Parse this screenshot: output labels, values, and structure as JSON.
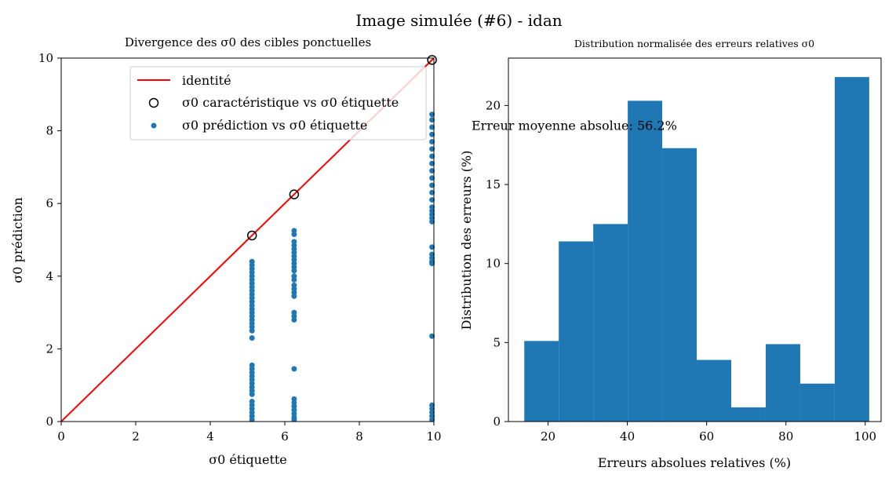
{
  "figure_title": "Image simulée (#6) - idan",
  "chart_data": [
    {
      "type": "scatter",
      "title": "Divergence des σ0 des cibles ponctuelles",
      "xlabel": "σ0 étiquette",
      "ylabel": "σ0 prédiction",
      "xlim": [
        0,
        10
      ],
      "ylim": [
        0,
        10
      ],
      "xticks": [
        0,
        2,
        4,
        6,
        8,
        10
      ],
      "yticks": [
        0,
        2,
        4,
        6,
        8,
        10
      ],
      "grid": false,
      "legend_position": "top-right",
      "legend": [
        {
          "label": "identité",
          "kind": "line"
        },
        {
          "label": "σ0 caractéristique vs σ0 étiquette",
          "kind": "hollow-circle"
        },
        {
          "label": "σ0 prédiction vs σ0 étiquette",
          "kind": "dot"
        }
      ],
      "colors": {
        "identity": "#ff0000",
        "prediction": "#1f77b4",
        "characteristic": "#000000"
      },
      "identity_line": {
        "x": [
          0,
          10
        ],
        "y": [
          0,
          10
        ]
      },
      "characteristic_points": [
        {
          "x": 5.12,
          "y": 5.12
        },
        {
          "x": 6.25,
          "y": 6.25
        },
        {
          "x": 9.95,
          "y": 9.95
        }
      ],
      "prediction_points": [
        {
          "x": 5.12,
          "y_values": [
            4.4,
            4.3,
            4.2,
            4.1,
            4.0,
            3.9,
            3.8,
            3.7,
            3.6,
            3.5,
            3.4,
            3.3,
            3.2,
            3.1,
            3.0,
            2.9,
            2.8,
            2.7,
            2.6,
            2.5,
            2.3,
            1.55,
            1.45,
            1.35,
            1.25,
            1.15,
            1.05,
            0.95,
            0.85,
            0.75,
            0.55,
            0.45,
            0.35,
            0.25,
            0.15,
            0.05
          ]
        },
        {
          "x": 6.25,
          "y_values": [
            5.25,
            5.15,
            4.95,
            4.85,
            4.75,
            4.65,
            4.55,
            4.45,
            4.35,
            4.25,
            4.15,
            4.0,
            3.9,
            3.75,
            3.65,
            3.55,
            3.45,
            3.0,
            2.9,
            2.8,
            1.45,
            0.62,
            0.52,
            0.42,
            0.32,
            0.22,
            0.12,
            0.05
          ]
        },
        {
          "x": 9.95,
          "y_values": [
            8.45,
            8.3,
            8.1,
            7.9,
            7.7,
            7.5,
            7.3,
            7.1,
            6.9,
            6.7,
            6.5,
            6.3,
            6.1,
            5.9,
            5.8,
            5.7,
            5.6,
            5.5,
            4.8,
            4.6,
            4.5,
            4.4,
            4.35,
            2.35,
            0.45,
            0.35,
            0.25,
            0.15,
            0.05
          ]
        }
      ]
    },
    {
      "type": "bar",
      "title": "Distribution normalisée des erreurs relatives σ0",
      "xlabel": "Erreurs absolues relatives (%)",
      "ylabel": "Distribution des erreurs (%)",
      "xlim": [
        10,
        104
      ],
      "ylim": [
        0,
        23
      ],
      "xticks": [
        20,
        40,
        60,
        80,
        100
      ],
      "yticks": [
        0,
        5,
        10,
        15,
        20
      ],
      "grid": false,
      "color": "#1f77b4",
      "bin_edges": [
        14.0,
        22.7,
        31.4,
        40.1,
        48.8,
        57.5,
        66.2,
        74.9,
        83.6,
        92.3,
        101.0
      ],
      "values": [
        5.1,
        11.4,
        12.5,
        20.3,
        17.3,
        3.9,
        0.9,
        4.9,
        2.4,
        21.8
      ],
      "annotation": {
        "text": "Erreur moyenne absolue: 56.2%",
        "x": 10,
        "y": 18.7
      }
    }
  ]
}
